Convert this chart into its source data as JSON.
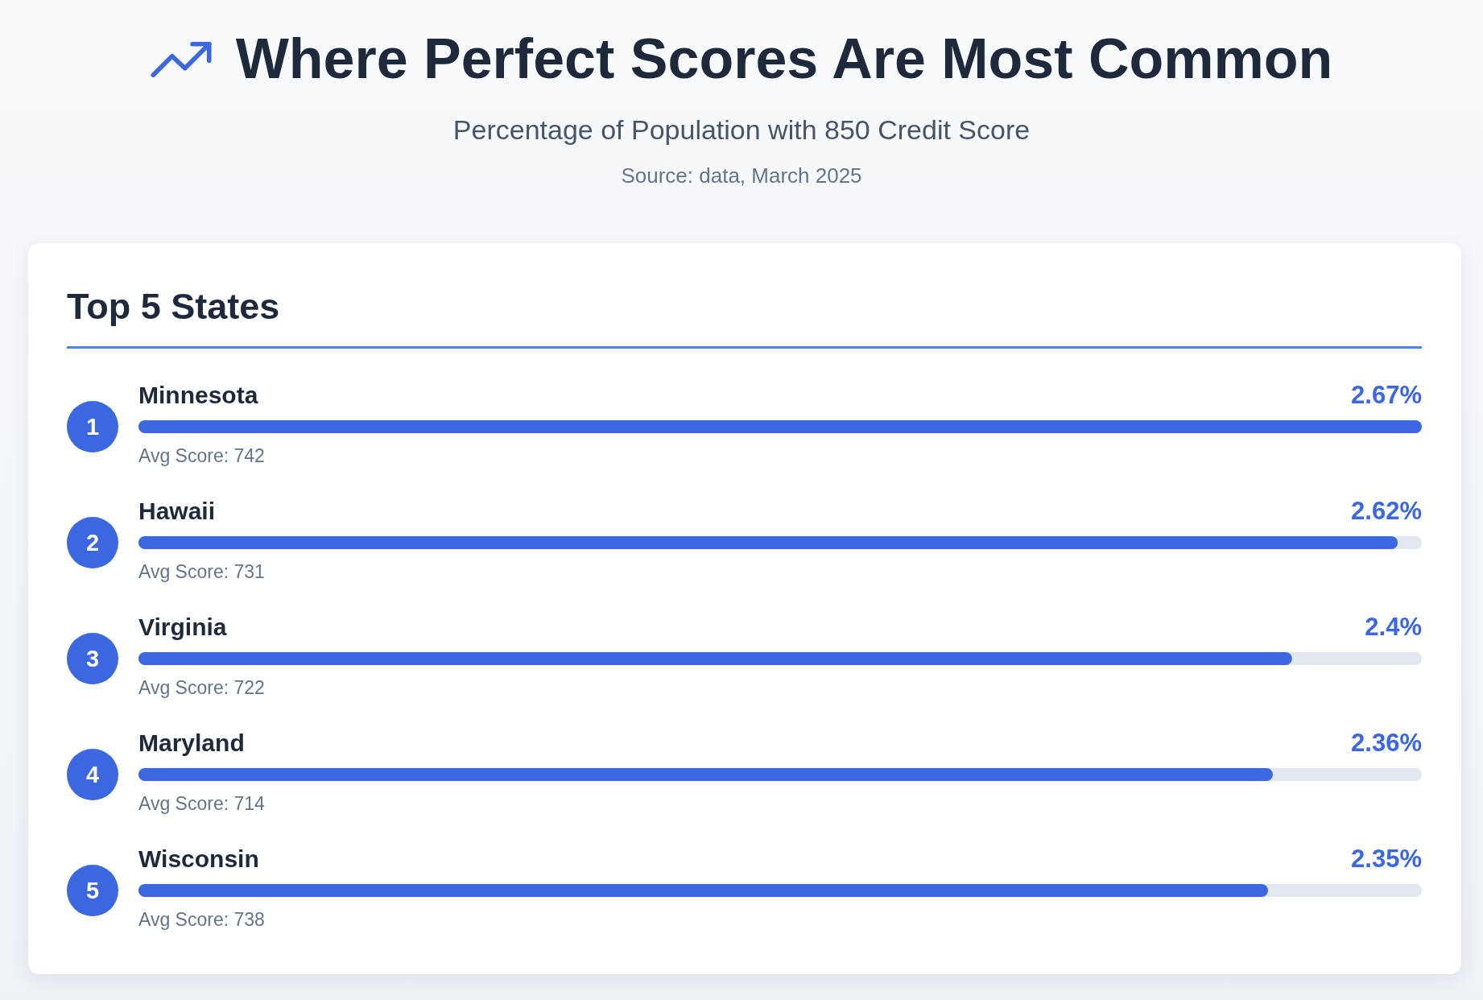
{
  "chart_data": {
    "type": "bar",
    "orientation": "horizontal",
    "title": "Where Perfect Scores Are Most Common",
    "subtitle": "Percentage of Population with 850 Credit Score",
    "annotations": [
      "Source: data, March 2025",
      "Top 5 States",
      "1",
      "Avg Score: 742",
      "2",
      "Avg Score: 731",
      "3",
      "Avg Score: 722",
      "4",
      "Avg Score: 714",
      "5",
      "Avg Score: 738"
    ],
    "categories": [
      "Minnesota",
      "Hawaii",
      "Virginia",
      "Maryland",
      "Wisconsin"
    ],
    "values": [
      2.67,
      2.62,
      2.4,
      2.36,
      2.35
    ],
    "value_labels": [
      "2.67%",
      "2.62%",
      "2.4%",
      "2.36%",
      "2.35%"
    ],
    "color": "#3b67e1",
    "xlim": [
      0,
      2.67
    ],
    "tick_labels": "y"
  }
}
